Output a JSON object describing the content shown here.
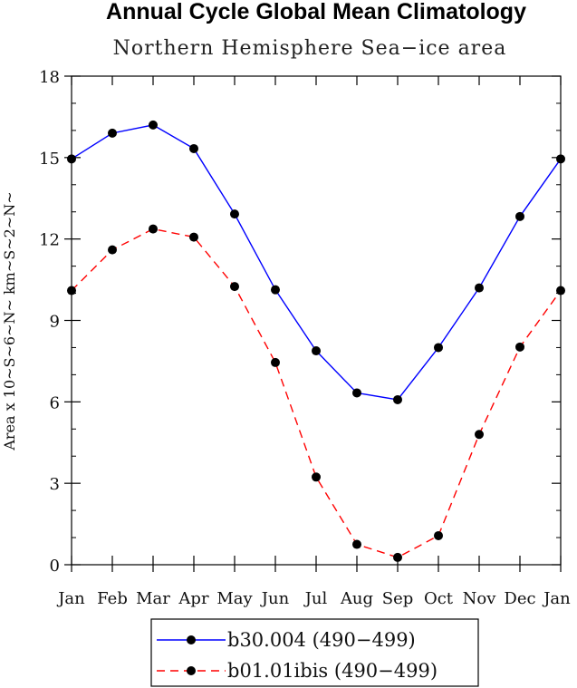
{
  "chart_data": {
    "type": "line",
    "title": "Annual Cycle Global Mean Climatology",
    "subtitle": "Northern Hemisphere Sea−ice area",
    "ylabel": "Area x 10~S~6~N~ km~S~2~N~",
    "xlabel": "",
    "categories": [
      "Jan",
      "Feb",
      "Mar",
      "Apr",
      "May",
      "Jun",
      "Jul",
      "Aug",
      "Sep",
      "Oct",
      "Nov",
      "Dec",
      "Jan"
    ],
    "ylim": [
      0,
      18
    ],
    "yticks": [
      "0",
      "3",
      "6",
      "9",
      "12",
      "15",
      "18"
    ],
    "grid": false,
    "legend_position": "bottom-center",
    "series": [
      {
        "name": "b30.004 (490−499)",
        "color": "#0000ff",
        "dash": "solid",
        "values": [
          14.95,
          15.9,
          16.2,
          15.33,
          12.92,
          10.13,
          7.88,
          6.33,
          6.08,
          8.0,
          10.2,
          12.83,
          14.95
        ]
      },
      {
        "name": "b01.01ibis (490−499)",
        "color": "#ff0000",
        "dash": "dashed",
        "values": [
          10.1,
          11.6,
          12.37,
          12.07,
          10.25,
          7.45,
          3.23,
          0.75,
          0.27,
          1.07,
          4.8,
          8.02,
          10.1
        ]
      }
    ]
  }
}
